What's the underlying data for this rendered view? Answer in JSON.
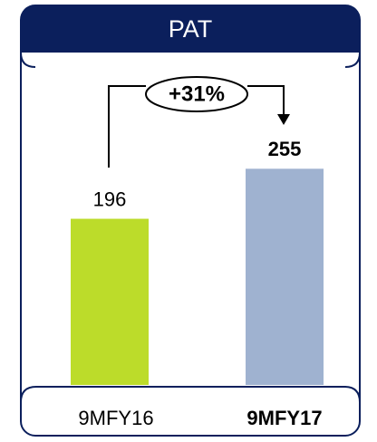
{
  "chart_data": {
    "type": "bar",
    "title": "PAT",
    "categories": [
      "9MFY16",
      "9MFY17"
    ],
    "values": [
      196,
      255
    ],
    "colors": [
      "#bcdc2a",
      "#9fb2d0"
    ],
    "annotation": "+31%"
  }
}
